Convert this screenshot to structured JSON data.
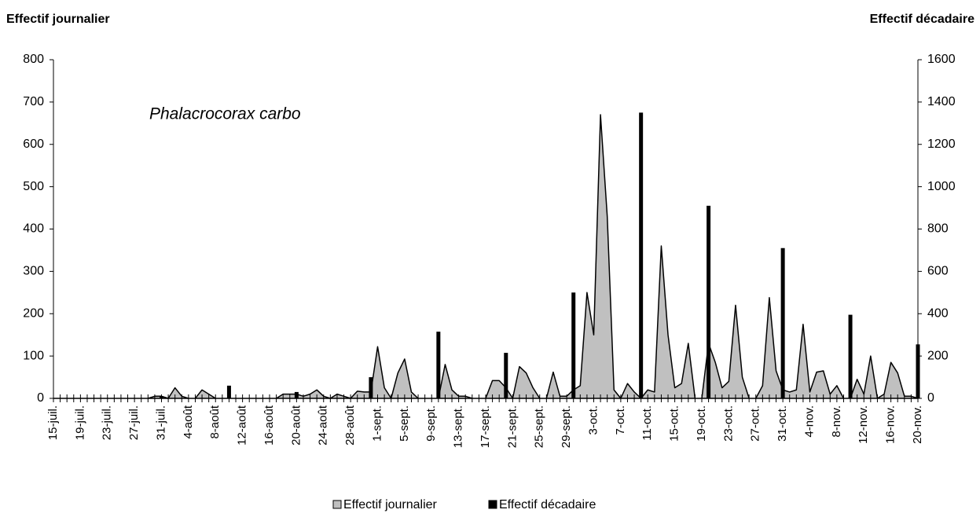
{
  "chart_data": {
    "type": "area_bar",
    "y_label": "Effectif journalier",
    "y2_label": "Effectif décadaire",
    "annotation": "Phalacrocorax carbo",
    "categories": [
      "15-juil.",
      null,
      null,
      null,
      "19-juil.",
      null,
      null,
      null,
      "23-juil.",
      null,
      null,
      null,
      "27-juil.",
      null,
      null,
      null,
      "31-juil.",
      null,
      null,
      null,
      "4-août",
      null,
      null,
      null,
      "8-août",
      null,
      null,
      null,
      "12-août",
      null,
      null,
      null,
      "16-août",
      null,
      null,
      null,
      "20-août",
      null,
      null,
      null,
      "24-août",
      null,
      null,
      null,
      "28-août",
      null,
      null,
      null,
      "1-sept.",
      null,
      null,
      null,
      "5-sept.",
      null,
      null,
      null,
      "9-sept.",
      null,
      null,
      null,
      "13-sept.",
      null,
      null,
      null,
      "17-sept.",
      null,
      null,
      null,
      "21-sept.",
      null,
      null,
      null,
      "25-sept.",
      null,
      null,
      null,
      "29-sept.",
      null,
      null,
      null,
      "3-oct.",
      null,
      null,
      null,
      "7-oct.",
      null,
      null,
      null,
      "11-oct.",
      null,
      null,
      null,
      "15-oct.",
      null,
      null,
      null,
      "19-oct.",
      null,
      null,
      null,
      "23-oct.",
      null,
      null,
      null,
      "27-oct.",
      null,
      null,
      null,
      "31-oct.",
      null,
      null,
      null,
      "4-nov.",
      null,
      null,
      null,
      "8-nov.",
      null,
      null,
      null,
      "12-nov.",
      null,
      null,
      null,
      "16-nov.",
      null,
      null,
      null,
      "20-nov."
    ],
    "series": [
      {
        "name": "Effectif journalier",
        "kind": "area",
        "color": "#c0c0c0",
        "axis": "y",
        "values": [
          0,
          0,
          0,
          0,
          0,
          0,
          0,
          0,
          0,
          0,
          0,
          0,
          0,
          0,
          0,
          5,
          5,
          0,
          25,
          5,
          0,
          0,
          20,
          10,
          0,
          0,
          0,
          0,
          0,
          0,
          0,
          0,
          0,
          0,
          10,
          10,
          10,
          5,
          10,
          20,
          5,
          0,
          10,
          5,
          0,
          17,
          15,
          15,
          122,
          25,
          0,
          60,
          93,
          15,
          0,
          0,
          0,
          0,
          80,
          20,
          5,
          5,
          0,
          0,
          0,
          42,
          42,
          25,
          0,
          75,
          60,
          25,
          0,
          0,
          62,
          5,
          5,
          20,
          30,
          250,
          150,
          670,
          430,
          20,
          0,
          35,
          15,
          0,
          20,
          15,
          360,
          150,
          25,
          35,
          130,
          0,
          0,
          130,
          85,
          25,
          40,
          220,
          50,
          0,
          0,
          30,
          238,
          65,
          20,
          15,
          20,
          175,
          15,
          62,
          65,
          10,
          30,
          0,
          0,
          45,
          10,
          100,
          0,
          10,
          85,
          60,
          5,
          5,
          0
        ]
      },
      {
        "name": "Effectif décadaire",
        "kind": "bar",
        "color": "#000000",
        "axis": "y2",
        "values": [
          null,
          null,
          null,
          null,
          null,
          null,
          null,
          null,
          null,
          null,
          null,
          null,
          null,
          null,
          null,
          null,
          10,
          null,
          null,
          null,
          null,
          null,
          null,
          null,
          null,
          null,
          60,
          null,
          null,
          null,
          null,
          null,
          null,
          null,
          null,
          null,
          30,
          null,
          null,
          null,
          null,
          null,
          null,
          null,
          null,
          null,
          null,
          100,
          null,
          null,
          null,
          null,
          null,
          null,
          null,
          null,
          null,
          315,
          null,
          null,
          null,
          null,
          null,
          null,
          null,
          null,
          null,
          215,
          null,
          null,
          null,
          null,
          null,
          null,
          null,
          null,
          null,
          500,
          null,
          null,
          null,
          null,
          null,
          null,
          null,
          null,
          null,
          1350,
          null,
          null,
          null,
          null,
          null,
          null,
          null,
          null,
          null,
          910,
          null,
          null,
          null,
          null,
          null,
          null,
          null,
          null,
          null,
          null,
          710,
          null,
          null,
          null,
          null,
          null,
          null,
          null,
          null,
          null,
          395,
          null,
          null,
          null,
          null,
          null,
          null,
          null,
          null,
          null,
          255
        ]
      }
    ],
    "ylim": [
      0,
      800
    ],
    "yticks": [
      0,
      100,
      200,
      300,
      400,
      500,
      600,
      700,
      800
    ],
    "y2lim": [
      0,
      1600
    ],
    "y2ticks": [
      0,
      200,
      400,
      600,
      800,
      1000,
      1200,
      1400,
      1600
    ],
    "legend": "bottom",
    "grid": false
  }
}
